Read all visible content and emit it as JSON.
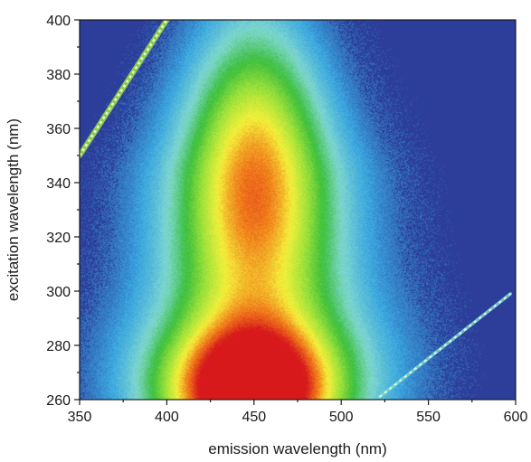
{
  "chart_data": {
    "type": "heatmap",
    "title": "",
    "xlabel": "emission wavelength (nm)",
    "ylabel": "excitation wavelength (nm)",
    "xlim": [
      350,
      600
    ],
    "ylim": [
      260,
      400
    ],
    "xticks": [
      350,
      400,
      450,
      500,
      550,
      600
    ],
    "yticks": [
      260,
      280,
      300,
      320,
      340,
      360,
      380,
      400
    ],
    "grid": false,
    "legend": "none",
    "colormap": [
      "#2c3e9a",
      "#3aa6e0",
      "#7fd8d0",
      "#3dbf3d",
      "#9ee23a",
      "#f5f03a",
      "#f07a1a",
      "#d7191c"
    ],
    "background_color": "#2c3e9a",
    "peaks": [
      {
        "name_hidden": true,
        "emission_nm": 450,
        "excitation_nm": 323,
        "relative_intensity": 0.62
      },
      {
        "name_hidden": true,
        "emission_nm": 448,
        "excitation_nm": 262,
        "relative_intensity": 1.0
      }
    ],
    "scatter_lines": [
      {
        "from": {
          "emission_nm": 350,
          "excitation_nm": 350
        },
        "to": {
          "emission_nm": 400,
          "excitation_nm": 400
        },
        "order": "first"
      },
      {
        "from": {
          "emission_nm": 522,
          "excitation_nm": 261
        },
        "to": {
          "emission_nm": 597,
          "excitation_nm": 299
        },
        "order": "second"
      }
    ]
  }
}
